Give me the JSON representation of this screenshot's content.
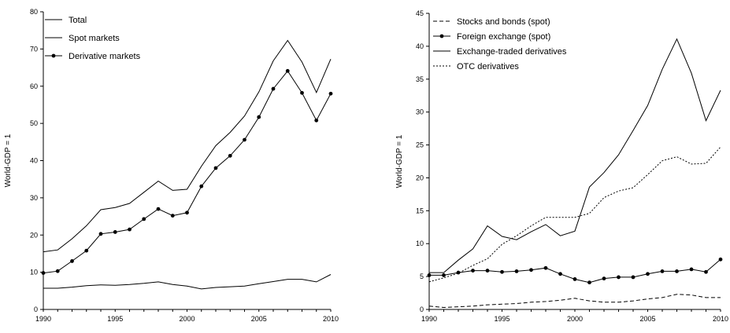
{
  "chart_data": [
    {
      "type": "line",
      "title": "",
      "xlabel": "",
      "ylabel": "World-GDP = 1",
      "xlim": [
        1990,
        2010
      ],
      "ylim": [
        0,
        80
      ],
      "xticks": [
        1990,
        1995,
        2000,
        2005,
        2010
      ],
      "yticks": [
        0,
        10,
        20,
        30,
        40,
        50,
        60,
        70,
        80
      ],
      "legend_position": "top-left",
      "x": [
        1990,
        1991,
        1992,
        1993,
        1994,
        1995,
        1996,
        1997,
        1998,
        1999,
        2000,
        2001,
        2002,
        2003,
        2004,
        2005,
        2006,
        2007,
        2008,
        2009,
        2010
      ],
      "series": [
        {
          "name": "Total",
          "style": "solid",
          "markers": false,
          "values": [
            15.5,
            16,
            19,
            22.5,
            26.8,
            27.4,
            28.5,
            31.5,
            34.5,
            32,
            32.3,
            38.5,
            44,
            47.6,
            52,
            58.5,
            66.8,
            72.3,
            66.5,
            58.3,
            67.3
          ]
        },
        {
          "name": "Spot markets",
          "style": "solid",
          "markers": false,
          "values": [
            5.7,
            5.7,
            6,
            6.4,
            6.6,
            6.5,
            6.7,
            7,
            7.4,
            6.7,
            6.3,
            5.5,
            5.9,
            6.1,
            6.3,
            6.9,
            7.5,
            8.1,
            8.1,
            7.4,
            9.4
          ]
        },
        {
          "name": "Derivative markets",
          "style": "solid",
          "markers": true,
          "values": [
            9.8,
            10.3,
            13,
            15.8,
            20.3,
            20.8,
            21.5,
            24.3,
            27,
            25.2,
            26,
            33.1,
            38,
            41.3,
            45.6,
            51.7,
            59.3,
            64.1,
            58.2,
            50.8,
            58
          ]
        }
      ]
    },
    {
      "type": "line",
      "title": "",
      "xlabel": "",
      "ylabel": "World-GDP = 1",
      "xlim": [
        1990,
        2010
      ],
      "ylim": [
        0,
        45
      ],
      "xticks": [
        1990,
        1995,
        2000,
        2005,
        2010
      ],
      "yticks": [
        0,
        5,
        10,
        15,
        20,
        25,
        30,
        35,
        40,
        45
      ],
      "legend_position": "top-left",
      "x": [
        1990,
        1991,
        1992,
        1993,
        1994,
        1995,
        1996,
        1997,
        1998,
        1999,
        2000,
        2001,
        2002,
        2003,
        2004,
        2005,
        2006,
        2007,
        2008,
        2009,
        2010
      ],
      "series": [
        {
          "name": "Stocks and bonds (spot)",
          "style": "dashed",
          "markers": false,
          "values": [
            0.5,
            0.3,
            0.4,
            0.5,
            0.7,
            0.8,
            0.9,
            1.1,
            1.2,
            1.4,
            1.7,
            1.3,
            1.1,
            1.1,
            1.3,
            1.6,
            1.8,
            2.3,
            2.2,
            1.8,
            1.8
          ]
        },
        {
          "name": "Foreign exchange (spot)",
          "style": "solid",
          "markers": true,
          "values": [
            5.2,
            5.2,
            5.6,
            5.9,
            5.9,
            5.7,
            5.8,
            6,
            6.3,
            5.4,
            4.6,
            4.1,
            4.7,
            4.9,
            4.9,
            5.4,
            5.8,
            5.8,
            6.1,
            5.7,
            7.6
          ]
        },
        {
          "name": "Exchange-traded derivatives",
          "style": "solid",
          "markers": false,
          "values": [
            5.6,
            5.6,
            7.5,
            9.2,
            12.7,
            11.1,
            10.6,
            11.8,
            12.9,
            11.2,
            11.9,
            18.6,
            20.8,
            23.5,
            27.2,
            31,
            36.5,
            41.1,
            35.9,
            28.7,
            33.3
          ]
        },
        {
          "name": "OTC derivatives",
          "style": "dotted",
          "markers": false,
          "values": [
            4.2,
            4.8,
            5.5,
            6.7,
            7.7,
            9.9,
            11.2,
            12.7,
            14,
            14,
            14,
            14.6,
            17,
            18,
            18.5,
            20.5,
            22.6,
            23.2,
            22.1,
            22.2,
            24.7
          ]
        }
      ]
    }
  ]
}
